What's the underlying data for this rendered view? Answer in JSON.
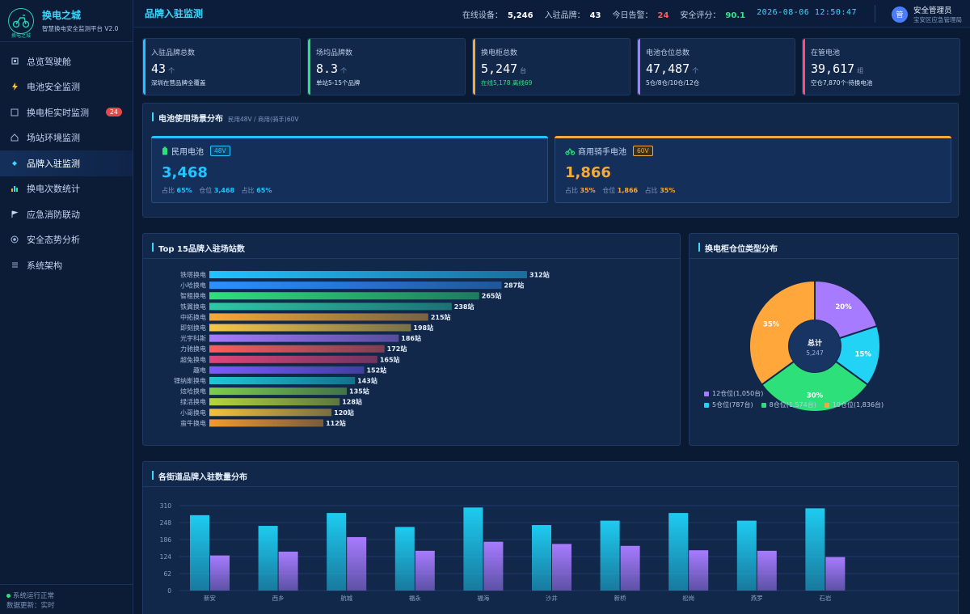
{
  "brand": {
    "name": "换电之城",
    "subtitle": "智慧换电安全监测平台 V2.0",
    "logo_text": "换电之城"
  },
  "nav": [
    {
      "label": "总览驾驶舱",
      "icon": "square-icon"
    },
    {
      "label": "电池安全监测",
      "icon": "lightning-icon"
    },
    {
      "label": "换电柜实时监测",
      "icon": "box-icon",
      "badge": "24"
    },
    {
      "label": "场站环境监测",
      "icon": "house-icon"
    },
    {
      "label": "品牌入驻监测",
      "icon": "diamond-icon",
      "active": true
    },
    {
      "label": "换电次数统计",
      "icon": "bar-chart-icon"
    },
    {
      "label": "应急消防联动",
      "icon": "flag-icon"
    },
    {
      "label": "安全态势分析",
      "icon": "radar-icon"
    },
    {
      "label": "系统架构",
      "icon": "menu-icon"
    }
  ],
  "footer": {
    "status": "系统运行正常",
    "update": "数据更新：实时"
  },
  "header": {
    "title": "品牌入驻监测",
    "stats": [
      {
        "label": "在线设备：",
        "value": "5,246"
      },
      {
        "label": "入驻品牌：",
        "value": "43"
      },
      {
        "label": "今日告警：",
        "value": "24"
      },
      {
        "label": "安全评分：",
        "value": "90.1"
      }
    ],
    "datetime": "2026-08-06 12:50:47",
    "user": {
      "avatar": "管",
      "name": "安全管理员",
      "role": "宝安区应急管理局"
    }
  },
  "kpis": [
    {
      "label": "入驻品牌总数",
      "value": "43",
      "unit": "个",
      "note": "深圳在营品牌全覆盖",
      "color": "#22c3ff"
    },
    {
      "label": "场均品牌数",
      "value": "8.3",
      "unit": "个",
      "note": "单站5-15个品牌",
      "color": "#2ee07a"
    },
    {
      "label": "换电柜总数",
      "value": "5,247",
      "unit": "台",
      "note_online": "在线5,178",
      "note_offline": "离线69",
      "color": "#f5a93a"
    },
    {
      "label": "电池仓位总数",
      "value": "47,487",
      "unit": "个",
      "note": "5仓/8仓/10仓/12仓",
      "color": "#a77bff"
    },
    {
      "label": "在管电池",
      "value": "39,617",
      "unit": "组",
      "note": "空仓7,870个·待换电池",
      "color": "#ff4f6d"
    }
  ],
  "scenes": {
    "title": "电池使用场景分布",
    "subtitle": "民用48V / 商用(骑手)60V",
    "items": [
      {
        "name": "民用电池",
        "tag": "48V",
        "value": "3,468",
        "meta1_label": "占比",
        "meta1": "65%",
        "meta2_label": "仓位",
        "meta2": "3,468",
        "meta3_label": "占比",
        "meta3": "65%",
        "color": "#22c3ff"
      },
      {
        "name": "商用骑手电池",
        "tag": "60V",
        "value": "1,866",
        "meta1_label": "占比",
        "meta1": "35%",
        "meta2_label": "仓位",
        "meta2": "1,866",
        "meta3_label": "占比",
        "meta3": "35%",
        "color": "#f5a93a"
      }
    ]
  },
  "panels": {
    "top15_title": "Top 15品牌入驻场站数",
    "pie_title": "换电柜仓位类型分布",
    "district_title": "各街道品牌入驻数量分布"
  },
  "chart_data": [
    {
      "type": "bar",
      "orientation": "horizontal",
      "title": "Top 15品牌入驻场站数",
      "categories": [
        "铁塔换电",
        "小哈换电",
        "智租换电",
        "铁翼换电",
        "中拓换电",
        "即刻换电",
        "光宇科斯",
        "力驰换电",
        "超兔换电",
        "趣电",
        "锂纳斯换电",
        "炫哈换电",
        "绿活换电",
        "小哥换电",
        "蛮牛换电"
      ],
      "values": [
        312,
        287,
        265,
        238,
        215,
        198,
        186,
        172,
        165,
        152,
        143,
        135,
        128,
        120,
        112
      ],
      "value_suffix": "站",
      "colors": [
        "#22c3ff",
        "#2f8fff",
        "#2ee07a",
        "#2cc9a6",
        "#f5a93a",
        "#f5c84a",
        "#a77bff",
        "#ff5d5d",
        "#e0457a",
        "#7b5cff",
        "#1fc8d8",
        "#7ccf4a",
        "#b7d63a",
        "#f5c23a",
        "#f59a2a"
      ]
    },
    {
      "type": "pie",
      "title": "换电柜仓位类型分布",
      "center_label": "总计",
      "center_value": "5,247",
      "slices": [
        {
          "name": "12仓位(1,050台)",
          "value": 20,
          "label": "20%",
          "color": "#a77bff"
        },
        {
          "name": "5仓位(787台)",
          "value": 15,
          "label": "15%",
          "color": "#22d3f5"
        },
        {
          "name": "8仓位(1,574台)",
          "value": 30,
          "label": "30%",
          "color": "#2ee07a"
        },
        {
          "name": "10仓位(1,836台)",
          "value": 35,
          "label": "35%",
          "color": "#ffa73a"
        }
      ]
    },
    {
      "type": "bar",
      "title": "各街道品牌入驻数量分布",
      "categories": [
        "新安",
        "西乡",
        "航城",
        "福永",
        "福海",
        "沙井",
        "新桥",
        "松岗",
        "燕罗",
        "石岩"
      ],
      "series": [
        {
          "values": [
            275,
            236,
            283,
            232,
            303,
            239,
            255,
            283,
            255,
            300
          ],
          "color": "#1ecbf0"
        },
        {
          "values": [
            128,
            142,
            195,
            145,
            178,
            170,
            163,
            147,
            145,
            122
          ],
          "color": "#a77bff"
        }
      ],
      "yticks": [
        "0",
        "62",
        "124",
        "186",
        "248",
        "310"
      ],
      "ylim": [
        0,
        310
      ],
      "grid": true
    }
  ]
}
